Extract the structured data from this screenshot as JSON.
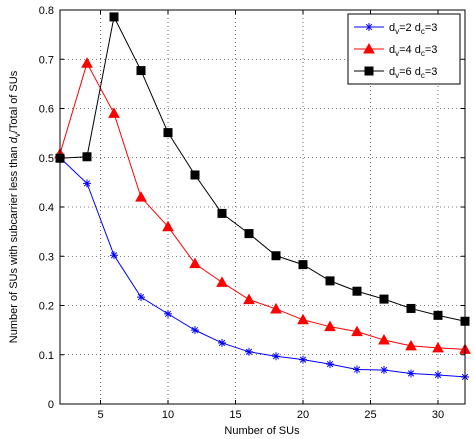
{
  "chart_data": {
    "type": "line",
    "xlabel": "Number of SUs",
    "ylabel": {
      "prefix": "Number of SUs with subcarrier less than ",
      "var": "d",
      "sub": "v",
      "suffix": "/Total of SUs"
    },
    "xlim": [
      2,
      32
    ],
    "ylim": [
      0,
      0.8
    ],
    "xticks": [
      5,
      10,
      15,
      20,
      25,
      30
    ],
    "yticks": [
      0,
      0.1,
      0.2,
      0.3,
      0.4,
      0.5,
      0.6,
      0.7,
      0.8
    ],
    "grid": true,
    "legend_position": "top-right",
    "x": [
      2,
      4,
      6,
      8,
      10,
      12,
      14,
      16,
      18,
      20,
      22,
      24,
      26,
      28,
      30,
      32
    ],
    "series": [
      {
        "name": "dv=2 dc=3",
        "legend": {
          "v": "2",
          "c": "3"
        },
        "color": "#0000ff",
        "marker": "star",
        "values": [
          0.5,
          0.448,
          0.302,
          0.217,
          0.183,
          0.15,
          0.124,
          0.106,
          0.097,
          0.09,
          0.081,
          0.07,
          0.069,
          0.062,
          0.059,
          0.055
        ]
      },
      {
        "name": "dv=4 dc=3",
        "legend": {
          "v": "4",
          "c": "3"
        },
        "color": "#ff0000",
        "marker": "triangle",
        "values": [
          0.508,
          0.692,
          0.59,
          0.42,
          0.36,
          0.285,
          0.247,
          0.212,
          0.193,
          0.171,
          0.157,
          0.147,
          0.13,
          0.118,
          0.114,
          0.111
        ]
      },
      {
        "name": "dv=6 dc=3",
        "legend": {
          "v": "6",
          "c": "3"
        },
        "color": "#000000",
        "marker": "square",
        "values": [
          0.499,
          0.502,
          0.786,
          0.677,
          0.551,
          0.465,
          0.387,
          0.346,
          0.301,
          0.283,
          0.25,
          0.229,
          0.213,
          0.194,
          0.18,
          0.168
        ]
      }
    ]
  }
}
